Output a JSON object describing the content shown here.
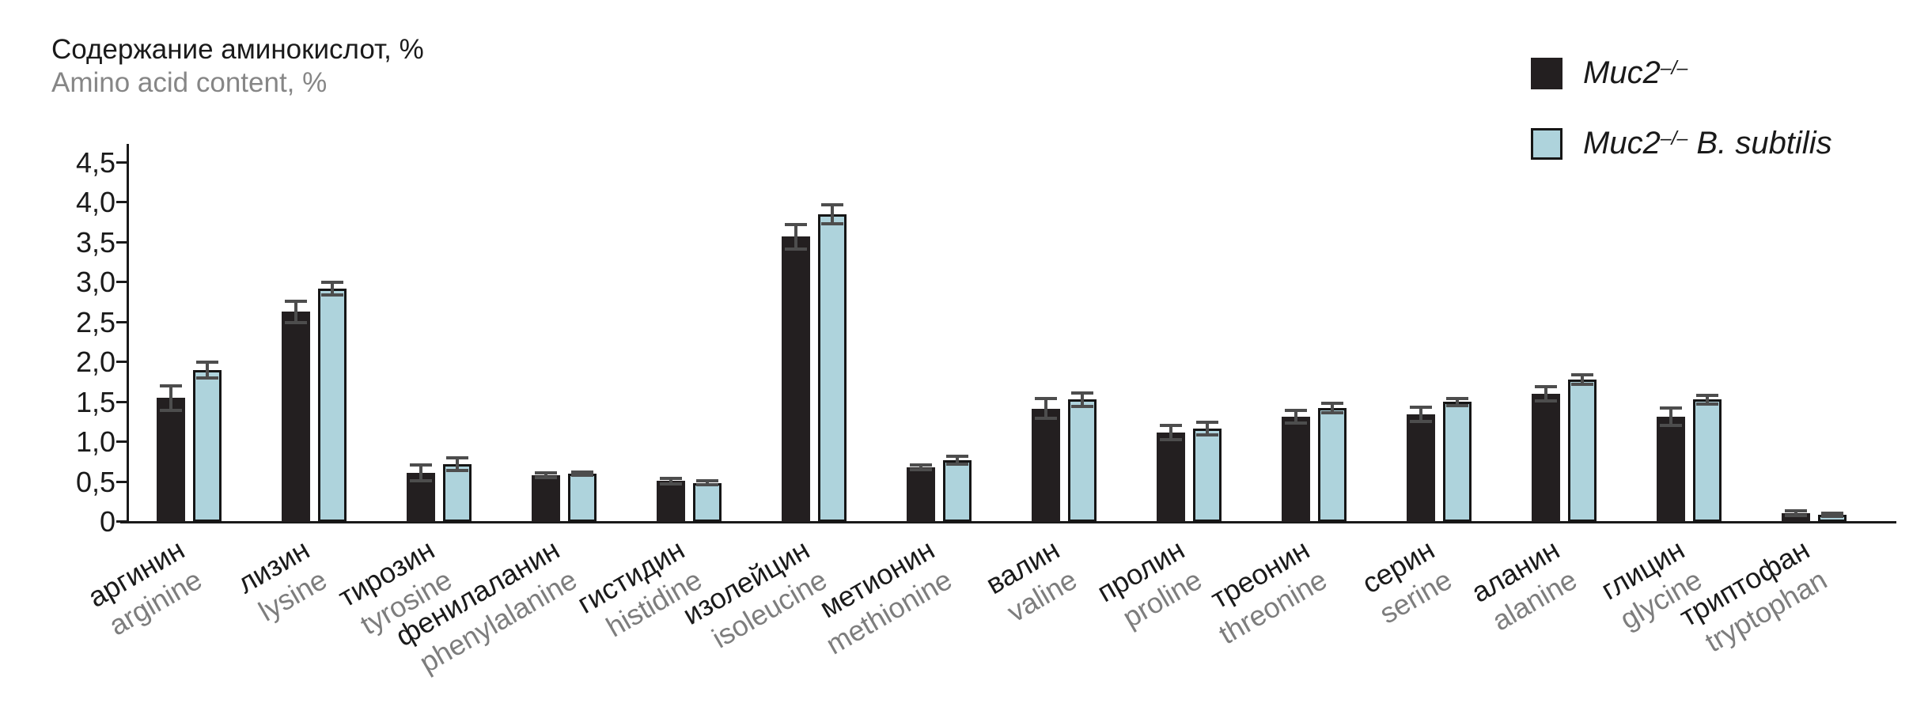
{
  "figure": {
    "title_ru": "Содержание аминокислот, %",
    "title_en": "Amino acid content, %"
  },
  "chart_data": {
    "type": "bar",
    "title": "Содержание аминокислот, % / Amino acid content, %",
    "xlabel": "",
    "ylabel": "Amino acid content, %",
    "ylim": [
      0,
      4.5
    ],
    "grid": false,
    "legend_position": "top-right",
    "y_ticks": [
      "0",
      "0,5",
      "1,0",
      "1,5",
      "2,0",
      "2,5",
      "3,0",
      "3,5",
      "4,0",
      "4,5"
    ],
    "categories": [
      {
        "ru": "аргинин",
        "en": "arginine"
      },
      {
        "ru": "лизин",
        "en": "lysine"
      },
      {
        "ru": "тирозин",
        "en": "tyrosine"
      },
      {
        "ru": "фенилаланин",
        "en": "phenylalanine"
      },
      {
        "ru": "гистидин",
        "en": "histidine"
      },
      {
        "ru": "изолейцин",
        "en": "isoleucine"
      },
      {
        "ru": "метионин",
        "en": "methionine"
      },
      {
        "ru": "валин",
        "en": "valine"
      },
      {
        "ru": "пролин",
        "en": "proline"
      },
      {
        "ru": "треонин",
        "en": "threonine"
      },
      {
        "ru": "серин",
        "en": "serine"
      },
      {
        "ru": "аланин",
        "en": "alanine"
      },
      {
        "ru": "глицин",
        "en": "glycine"
      },
      {
        "ru": "триптофан",
        "en": "tryptophan"
      }
    ],
    "series": [
      {
        "name": "Muc2–/–",
        "color": "#231f20",
        "values": [
          1.55,
          2.63,
          0.61,
          0.58,
          0.51,
          3.57,
          0.68,
          1.42,
          1.12,
          1.32,
          1.35,
          1.6,
          1.32,
          0.11
        ],
        "errors": [
          0.15,
          0.13,
          0.1,
          0.03,
          0.03,
          0.15,
          0.03,
          0.12,
          0.09,
          0.08,
          0.09,
          0.09,
          0.11,
          0.03
        ]
      },
      {
        "name": "Muc2–/– B. subtilis",
        "color": "#aed3dc",
        "values": [
          1.9,
          2.92,
          0.72,
          0.6,
          0.49,
          3.85,
          0.77,
          1.53,
          1.17,
          1.43,
          1.5,
          1.78,
          1.53,
          0.09
        ],
        "errors": [
          0.1,
          0.08,
          0.08,
          0.02,
          0.02,
          0.12,
          0.05,
          0.08,
          0.08,
          0.06,
          0.04,
          0.06,
          0.05,
          0.02
        ]
      }
    ],
    "error_bar_color": "#4d4d4d",
    "legend": {
      "items": [
        {
          "gene": "Muc2",
          "sup": "–/–",
          "rest": "",
          "color": "#231f20",
          "border": "#231f20"
        },
        {
          "gene": "Muc2",
          "sup": "–/–",
          "rest": " B. subtilis",
          "color": "#aed3dc",
          "border": "#161616"
        }
      ]
    }
  }
}
